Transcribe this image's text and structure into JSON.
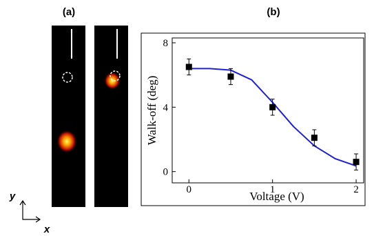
{
  "panel_a": {
    "label": "(a)"
  },
  "axes_indicator": {
    "x": "x",
    "y": "y"
  },
  "chart_data": {
    "type": "scatter",
    "panel_label": "(b)",
    "x_label": "Voltage (V)",
    "y_label": "Walk-off (deg)",
    "points": {
      "x": [
        0,
        0.5,
        1,
        1.5,
        2
      ],
      "values": [
        6.5,
        5.9,
        4.0,
        2.1,
        0.6
      ],
      "errors": [
        0.5,
        0.5,
        0.5,
        0.5,
        0.5
      ],
      "color": "#000000"
    },
    "fit": {
      "x": [
        0,
        0.25,
        0.5,
        0.75,
        1,
        1.25,
        1.5,
        1.75,
        2
      ],
      "values": [
        6.4,
        6.4,
        6.3,
        5.7,
        4.3,
        2.8,
        1.6,
        0.8,
        0.35
      ],
      "color": "#1f1fd6"
    },
    "xlim": [
      -0.2,
      2.09
    ],
    "ylim": [
      -0.7,
      8.3
    ],
    "xticks": [
      0,
      1,
      2
    ],
    "yticks": [
      0,
      4,
      8
    ]
  }
}
